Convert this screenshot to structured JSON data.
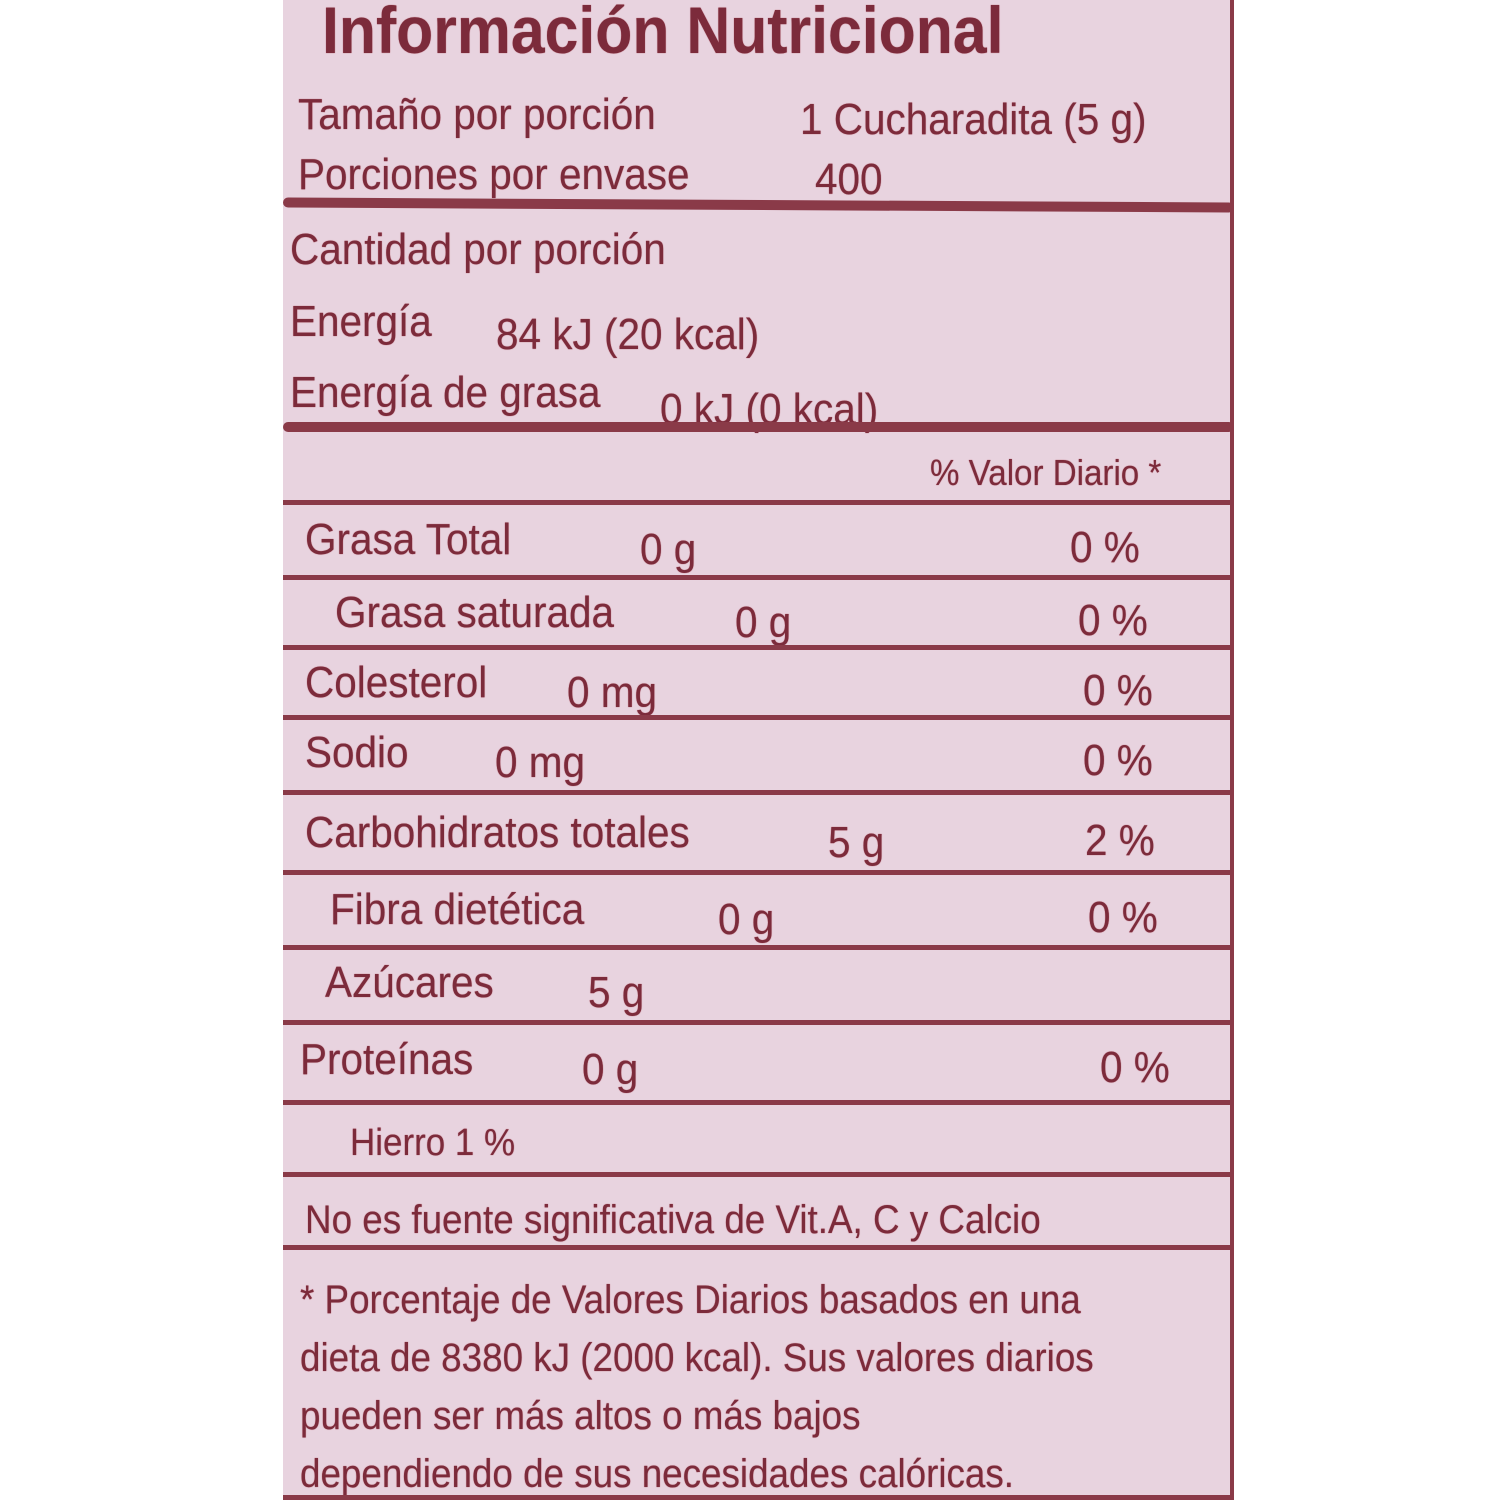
{
  "title": "Información Nutricional",
  "serving": {
    "size_label": "Tamaño por porción",
    "size_value": "1 Cucharadita  (5 g)",
    "servings_label": "Porciones por envase",
    "servings_value": "400"
  },
  "amount_header": "Cantidad por porción",
  "energy": {
    "label": "Energía",
    "value": "84 kJ (20 kcal)"
  },
  "fat_energy": {
    "label": "Energía de grasa",
    "value": "0 kJ  (0 kcal)"
  },
  "dv_header": "% Valor Diario *",
  "nutrients": [
    {
      "label": "Grasa Total",
      "amount": "0 g",
      "dv": "0 %"
    },
    {
      "label": "Grasa saturada",
      "amount": "0 g",
      "dv": "0 %"
    },
    {
      "label": "Colesterol",
      "amount": "0 mg",
      "dv": "0 %"
    },
    {
      "label": "Sodio",
      "amount": "0 mg",
      "dv": "0 %"
    },
    {
      "label": "Carbohidratos totales",
      "amount": "5 g",
      "dv": "2 %"
    },
    {
      "label": "Fibra dietética",
      "amount": "0 g",
      "dv": "0 %"
    },
    {
      "label": "Azúcares",
      "amount": "5 g",
      "dv": ""
    },
    {
      "label": "Proteínas",
      "amount": "0 g",
      "dv": "0 %"
    }
  ],
  "iron": "Hierro  1 %",
  "note": "No es fuente significativa de Vit.A, C y Calcio",
  "footnote": [
    "* Porcentaje de Valores Diarios basados en una",
    "dieta de 8380 kJ (2000 kcal). Sus valores diarios",
    "pueden ser más altos o más bajos",
    "dependiendo de sus necesidades calóricas."
  ],
  "colors": {
    "background": "#e8d3df",
    "ink": "#7c2b3b"
  }
}
